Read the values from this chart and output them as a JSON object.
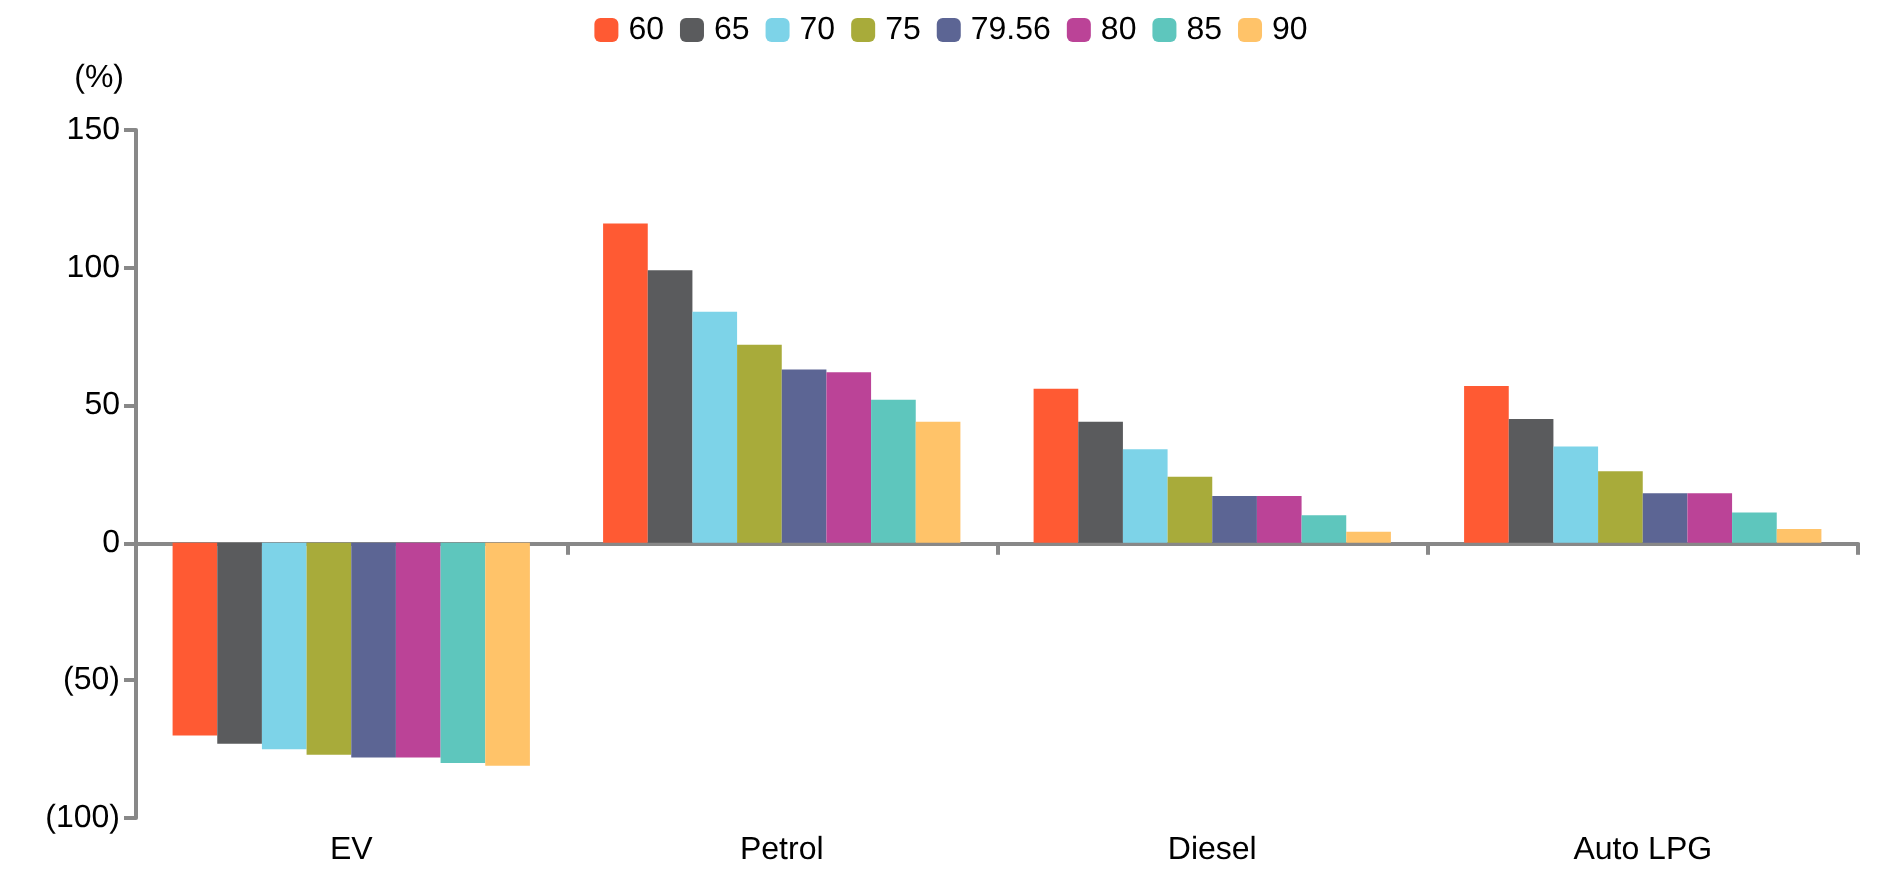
{
  "chart_data": {
    "type": "bar",
    "ylabel": "(%)",
    "categories": [
      "EV",
      "Petrol",
      "Diesel",
      "Auto LPG"
    ],
    "series": [
      {
        "name": "60",
        "color": "#ff5a33",
        "values": [
          -70,
          116,
          56,
          57
        ]
      },
      {
        "name": "65",
        "color": "#5a5b5d",
        "values": [
          -73,
          99,
          44,
          45
        ]
      },
      {
        "name": "70",
        "color": "#7dd3e8",
        "values": [
          -75,
          84,
          34,
          35
        ]
      },
      {
        "name": "75",
        "color": "#a8ab3a",
        "values": [
          -77,
          72,
          24,
          26
        ]
      },
      {
        "name": "79.56",
        "color": "#5c6594",
        "values": [
          -78,
          63,
          17,
          18
        ]
      },
      {
        "name": "80",
        "color": "#bb4397",
        "values": [
          -78,
          62,
          17,
          18
        ]
      },
      {
        "name": "85",
        "color": "#5ec6bd",
        "values": [
          -80,
          52,
          10,
          11
        ]
      },
      {
        "name": "90",
        "color": "#ffc369",
        "values": [
          -81,
          44,
          4,
          5
        ]
      }
    ],
    "ylim": [
      -100,
      150
    ],
    "yticks": [
      {
        "value": -100,
        "label": "(100)"
      },
      {
        "value": -50,
        "label": "(50)"
      },
      0,
      50,
      100,
      150
    ],
    "legend": "top"
  }
}
